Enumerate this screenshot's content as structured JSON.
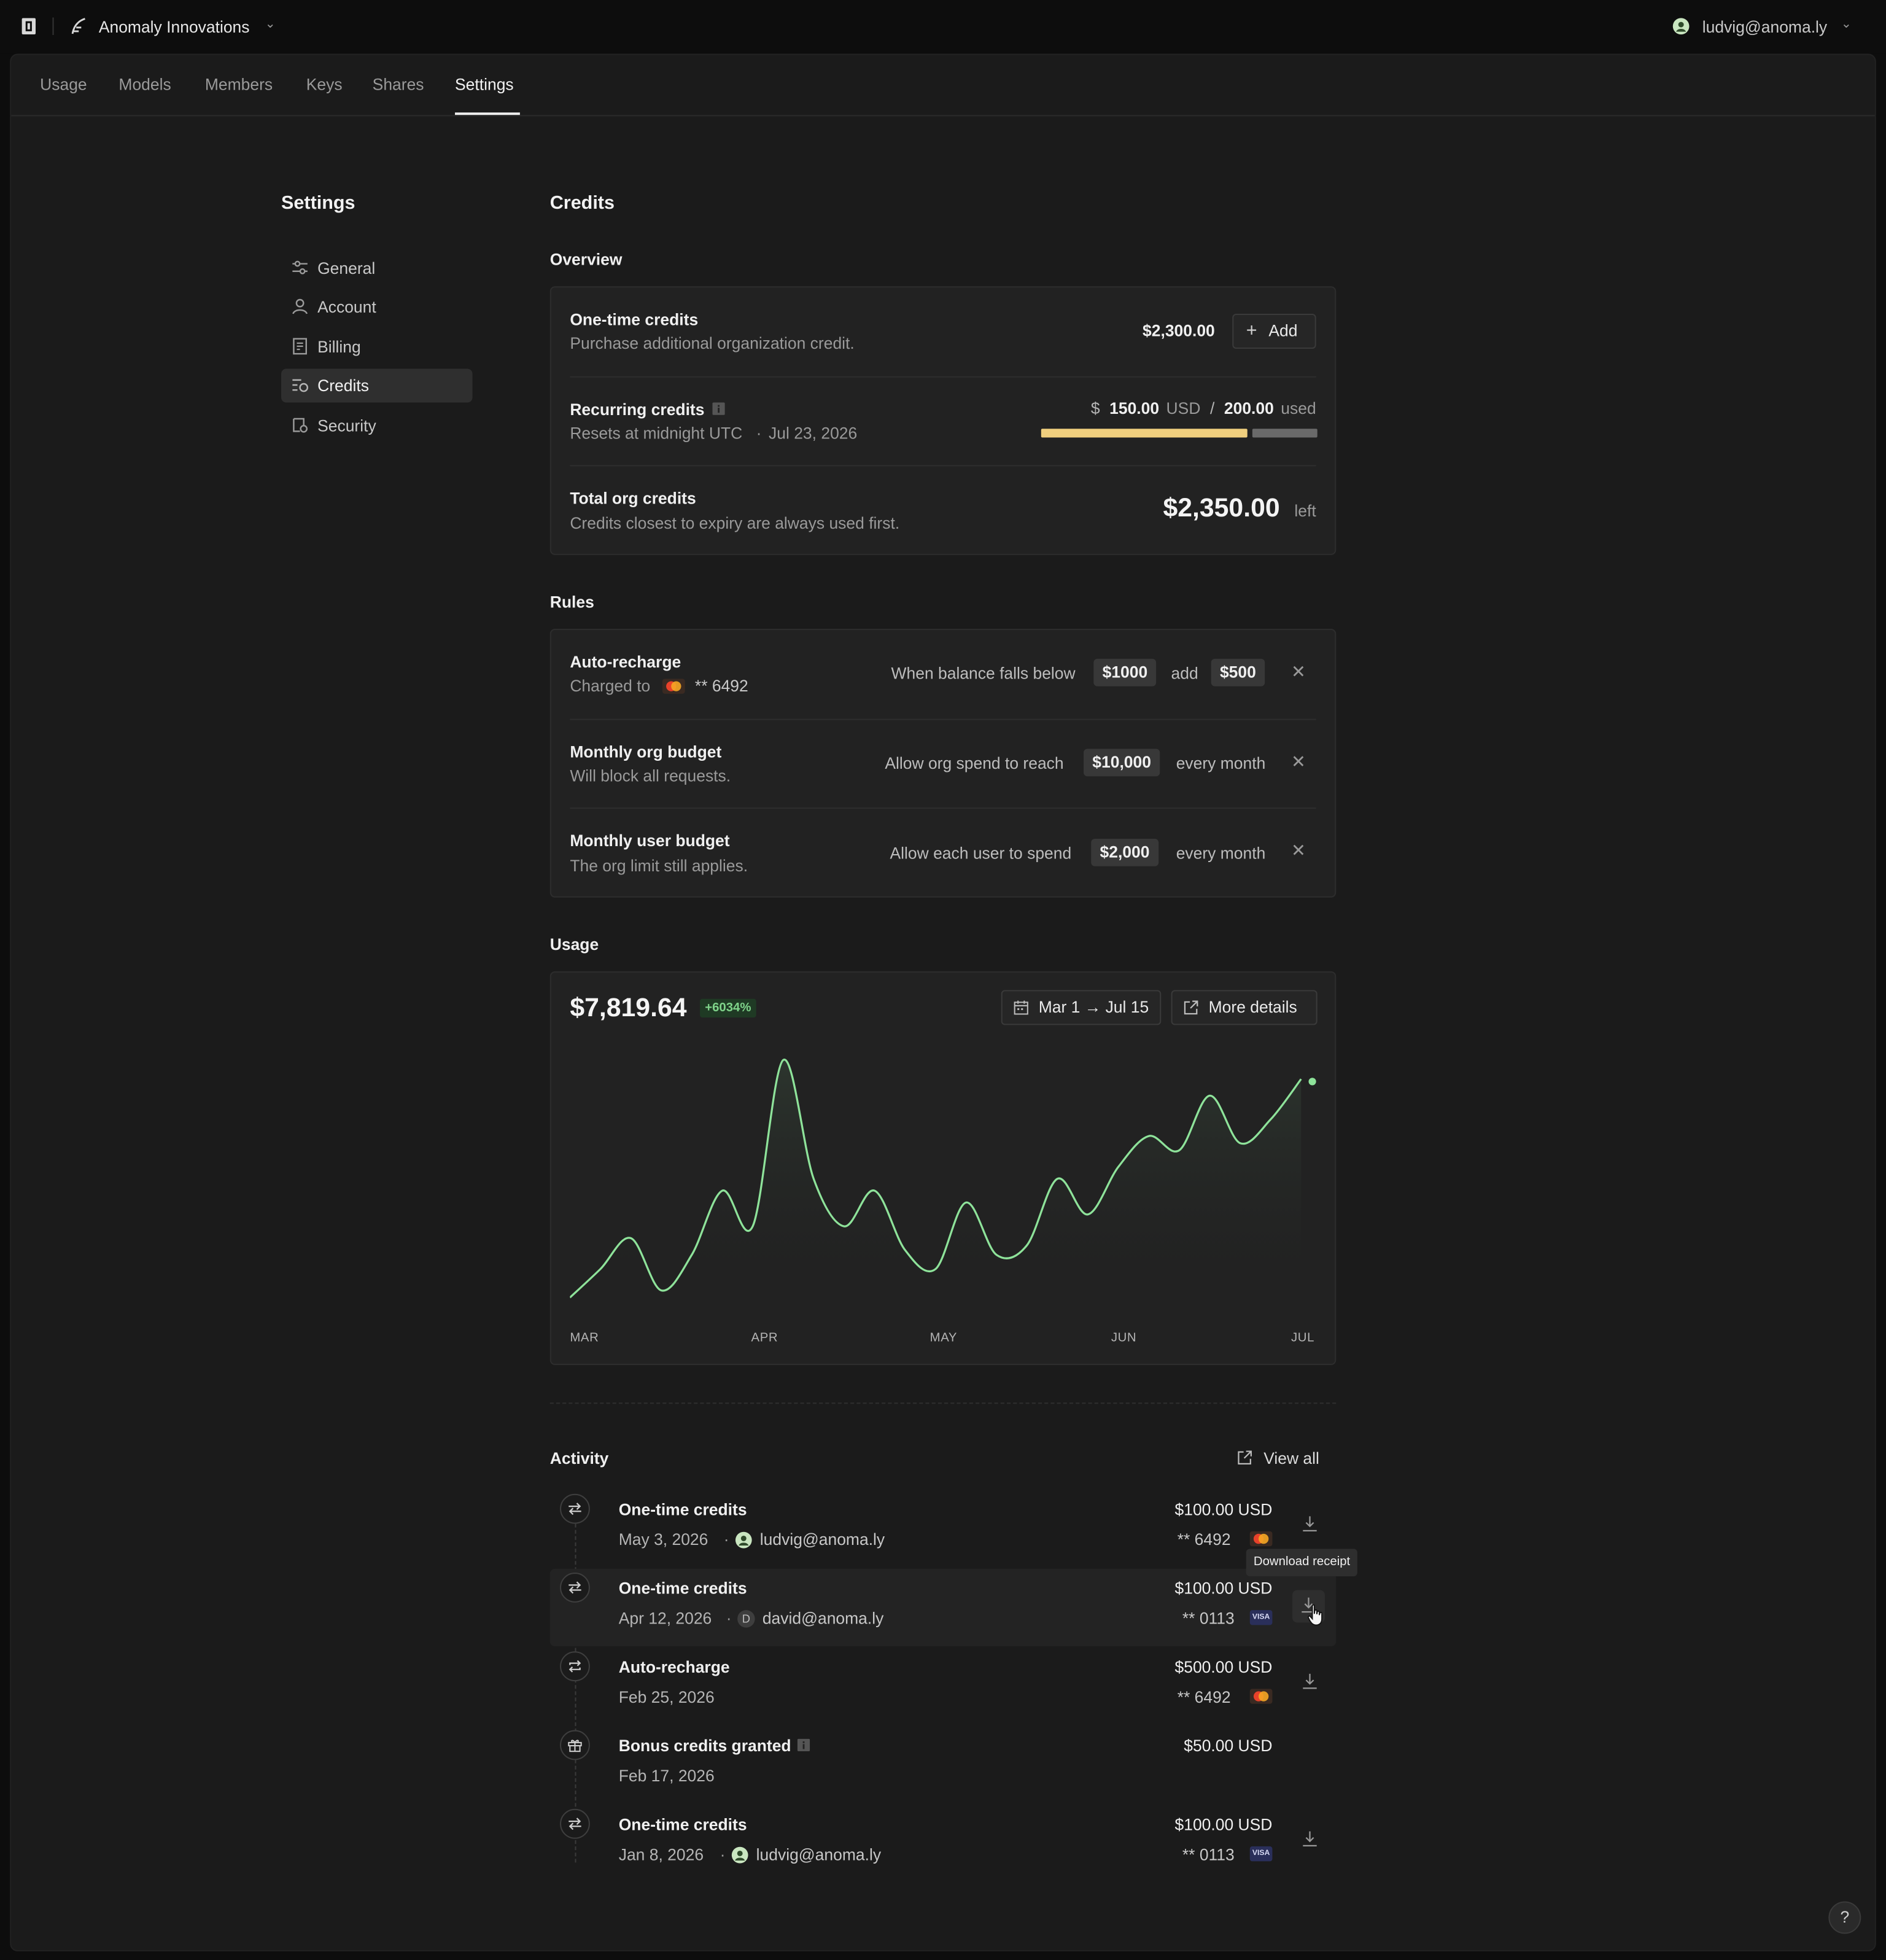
{
  "header": {
    "org_name": "Anomaly Innovations",
    "user_email": "ludvig@anoma.ly"
  },
  "tabs": [
    "Usage",
    "Models",
    "Members",
    "Keys",
    "Shares",
    "Settings"
  ],
  "active_tab": "Settings",
  "sidebar": {
    "title": "Settings",
    "items": [
      {
        "label": "General",
        "icon": "sliders-icon"
      },
      {
        "label": "Account",
        "icon": "user-icon"
      },
      {
        "label": "Billing",
        "icon": "receipt-icon"
      },
      {
        "label": "Credits",
        "icon": "credits-icon"
      },
      {
        "label": "Security",
        "icon": "shield-icon"
      }
    ],
    "active": "Credits"
  },
  "page_title": "Credits",
  "overview": {
    "title": "Overview",
    "one_time": {
      "title": "One-time credits",
      "subtitle": "Purchase additional organization credit.",
      "amount": "$2,300.00",
      "add_label": "Add"
    },
    "recurring": {
      "title": "Recurring credits",
      "subtitle": "Resets at midnight UTC",
      "date": "Jul 23, 2026",
      "currency_symbol": "$",
      "used": "150.00",
      "currency": "USD",
      "slash": "/",
      "total": "200.00",
      "used_label": "used",
      "used_fraction": 0.75
    },
    "total": {
      "title": "Total org credits",
      "subtitle": "Credits closest to expiry are always used first.",
      "amount": "$2,350.00",
      "suffix": "left"
    }
  },
  "rules": {
    "title": "Rules",
    "auto_recharge": {
      "title": "Auto-recharge",
      "subtitle": "Charged to",
      "card_last4": "** 6492",
      "text1": "When balance falls below",
      "threshold": "$1000",
      "text2": "add",
      "amount": "$500"
    },
    "org_budget": {
      "title": "Monthly org budget",
      "subtitle": "Will block all requests.",
      "text1": "Allow org spend to reach",
      "amount": "$10,000",
      "text2": "every month"
    },
    "user_budget": {
      "title": "Monthly user budget",
      "subtitle": "The org limit still applies.",
      "text1": "Allow each user to spend",
      "amount": "$2,000",
      "text2": "every month"
    }
  },
  "usage": {
    "title": "Usage",
    "total": "$7,819.64",
    "change": "+6034%",
    "date_range": "Mar 1 → Jul 15",
    "more_details": "More details",
    "accent": "#8ee39a"
  },
  "chart_data": {
    "type": "area",
    "x_ticks": [
      "MAR",
      "APR",
      "MAY",
      "JUN",
      "JUL"
    ],
    "y": [
      0.0,
      0.12,
      0.25,
      0.03,
      0.18,
      0.45,
      0.3,
      1.0,
      0.5,
      0.3,
      0.45,
      0.2,
      0.12,
      0.4,
      0.18,
      0.22,
      0.5,
      0.35,
      0.55,
      0.68,
      0.62,
      0.85,
      0.65,
      0.75,
      0.92
    ]
  },
  "activity": {
    "title": "Activity",
    "view_all": "View all",
    "tooltip": "Download receipt",
    "rows": [
      {
        "title": "One-time credits",
        "date": "May 3, 2026",
        "user": "ludvig@anoma.ly",
        "amount": "$100.00 USD",
        "last4": "** 6492",
        "card": "mastercard"
      },
      {
        "title": "One-time credits",
        "date": "Apr 12, 2026",
        "user": "david@anoma.ly",
        "avatar_letter": "D",
        "amount": "$100.00 USD",
        "last4": "** 0113",
        "card": "visa"
      },
      {
        "title": "Auto-recharge",
        "date": "Feb 25, 2026",
        "amount": "$500.00 USD",
        "last4": "** 6492",
        "card": "mastercard"
      },
      {
        "title": "Bonus credits granted",
        "date": "Feb 17, 2026",
        "amount": "$50.00 USD"
      },
      {
        "title": "One-time credits",
        "date": "Jan 8, 2026",
        "user": "ludvig@anoma.ly",
        "amount": "$100.00 USD",
        "last4": "** 0113",
        "card": "visa"
      }
    ],
    "visa_label": "VISA"
  },
  "help_label": "?"
}
